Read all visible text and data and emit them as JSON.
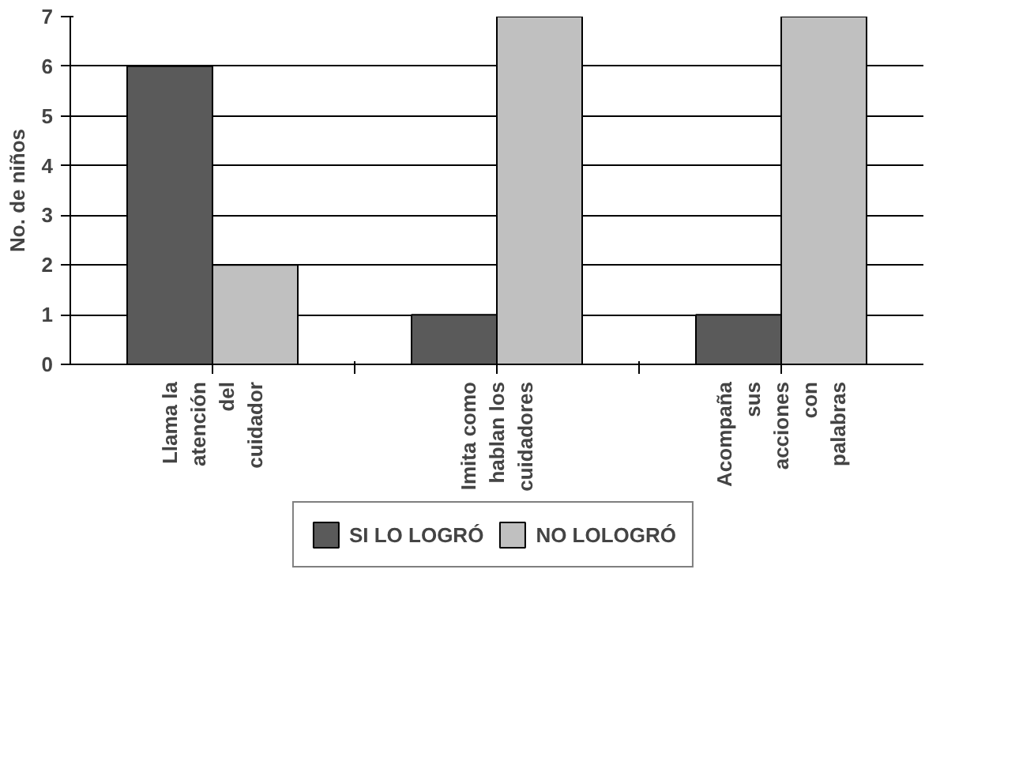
{
  "chart_data": {
    "type": "bar",
    "ylabel": "No. de niños",
    "categories": [
      "Llama la atención del cuidador",
      "Imita como hablan los cuidadores",
      "Acompaña sus acciones con palabras"
    ],
    "series": [
      {
        "name": "SI LO LOGRÓ",
        "color": "#5a5a5a",
        "values": [
          6,
          1,
          1
        ]
      },
      {
        "name": "NO LOLOGRÓ",
        "color": "#c0c0c0",
        "values": [
          2,
          7,
          7
        ]
      }
    ],
    "ylim": [
      0,
      7
    ],
    "yticks": [
      0,
      1,
      2,
      3,
      4,
      5,
      6,
      7
    ],
    "grid": "y",
    "legend": "bottom"
  }
}
